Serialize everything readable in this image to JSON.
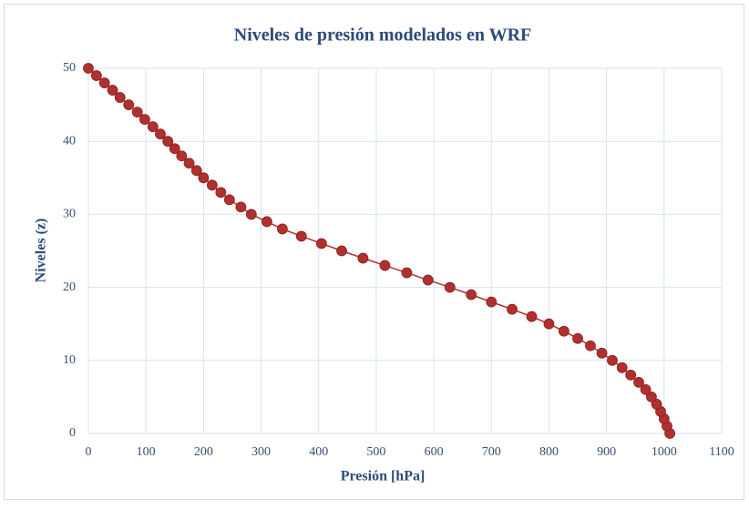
{
  "chart_data": {
    "type": "scatter",
    "title": "Niveles de presión modelados en WRF",
    "xlabel": "Presión [hPa]",
    "ylabel": "Niveles (z)",
    "series": [
      {
        "name": "Niveles",
        "color": "#b03030",
        "x": [
          1010,
          1005,
          1000,
          994,
          987,
          978,
          968,
          956,
          942,
          927,
          910,
          892,
          872,
          850,
          826,
          800,
          770,
          736,
          700,
          665,
          628,
          590,
          553,
          515,
          477,
          440,
          405,
          370,
          337,
          310,
          283,
          265,
          245,
          230,
          215,
          200,
          188,
          175,
          162,
          150,
          138,
          125,
          112,
          98,
          85,
          70,
          55,
          42,
          28,
          14,
          0
        ],
        "values": [
          0,
          1,
          2,
          3,
          4,
          5,
          6,
          7,
          8,
          9,
          10,
          11,
          12,
          13,
          14,
          15,
          16,
          17,
          18,
          19,
          20,
          21,
          22,
          23,
          24,
          25,
          26,
          27,
          28,
          29,
          30,
          31,
          32,
          33,
          34,
          35,
          36,
          37,
          38,
          39,
          40,
          41,
          42,
          43,
          44,
          45,
          46,
          47,
          48,
          49,
          50
        ]
      }
    ],
    "xlim": [
      0,
      1100
    ],
    "xticks": [
      0,
      100,
      200,
      300,
      400,
      500,
      600,
      700,
      800,
      900,
      1000,
      1100
    ],
    "ylim": [
      0,
      50
    ],
    "yticks": [
      0,
      10,
      20,
      30,
      40,
      50
    ],
    "grid": true,
    "line": true
  }
}
